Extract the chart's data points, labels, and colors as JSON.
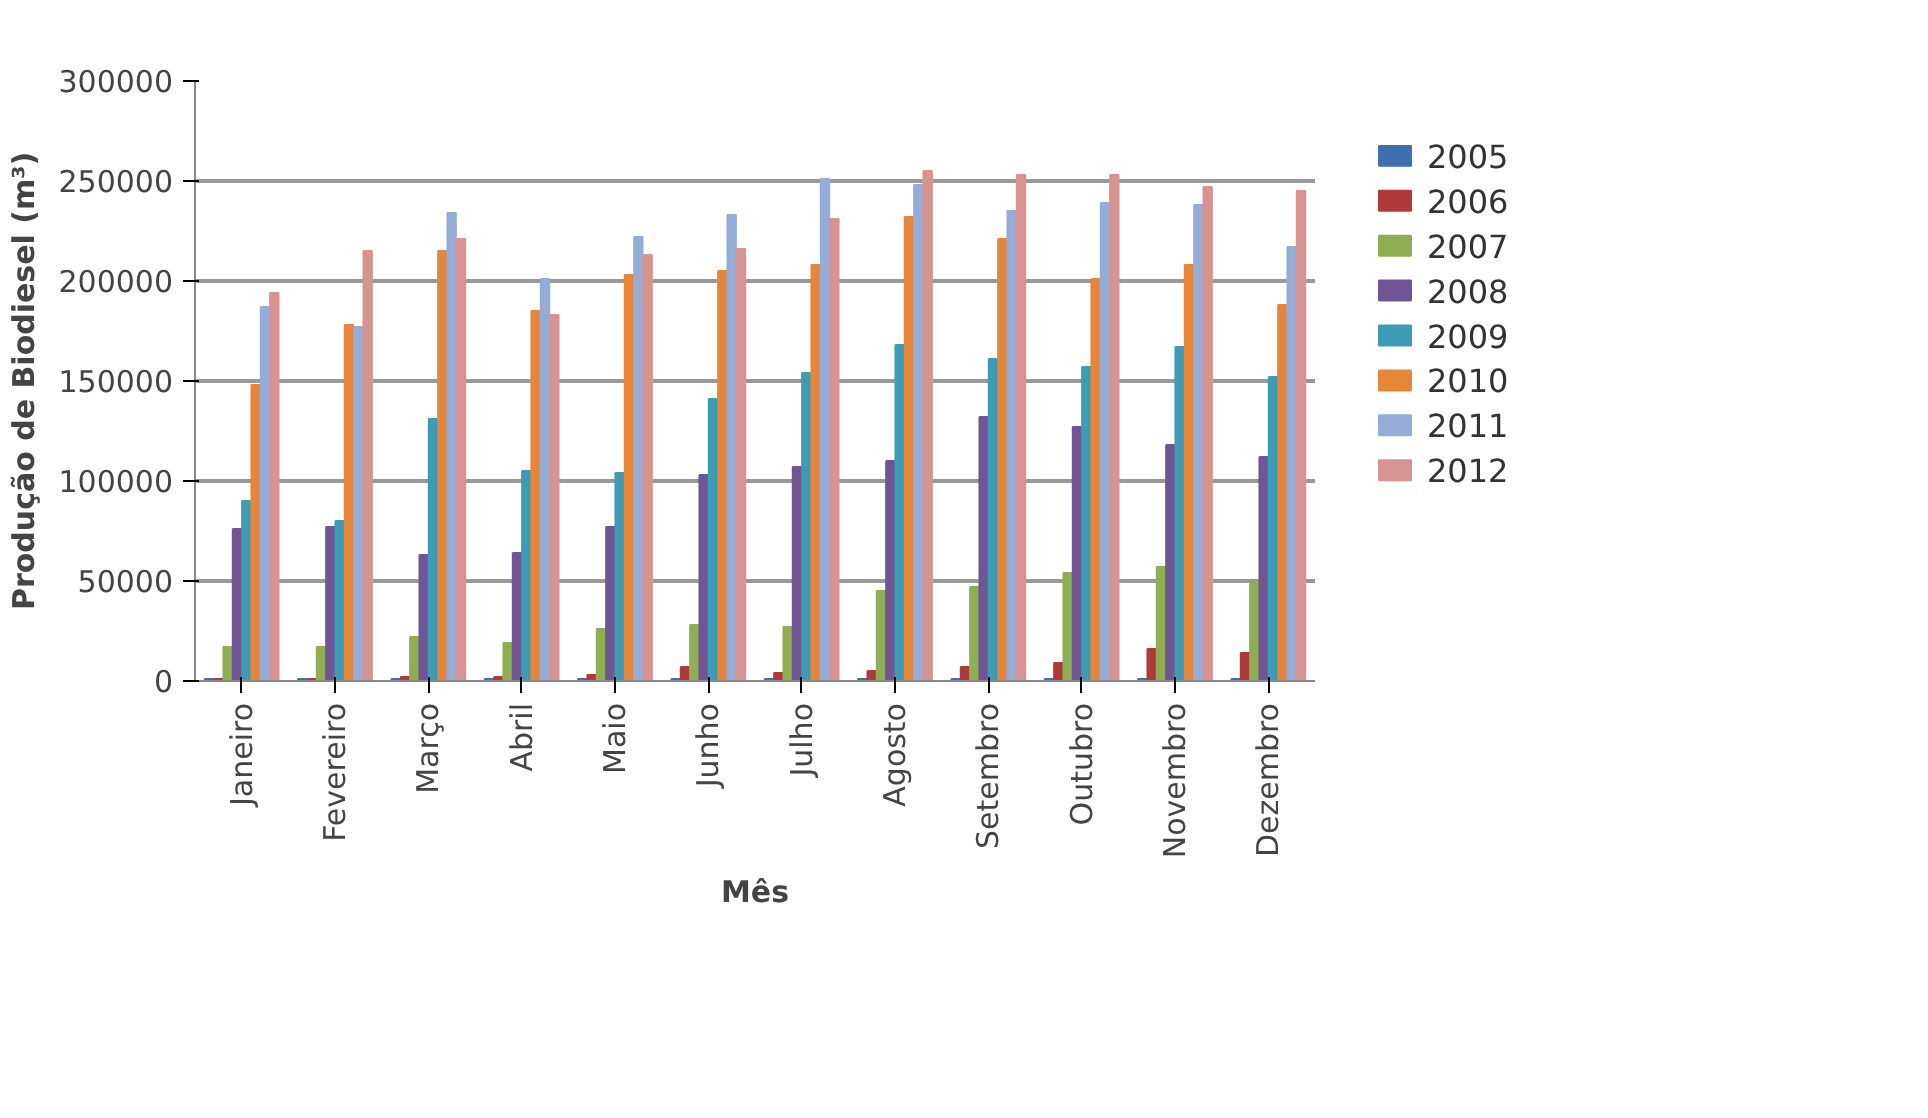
{
  "chart_data": {
    "type": "bar",
    "xlabel": "Mês",
    "ylabel": "Produção de Biodiesel (m³)",
    "categories": [
      "Janeiro",
      "Fevereiro",
      "Março",
      "Abril",
      "Maio",
      "Junho",
      "Julho",
      "Agosto",
      "Setembro",
      "Outubro",
      "Novembro",
      "Dezembro"
    ],
    "ylim": [
      0,
      300000
    ],
    "yticks": [
      0,
      50000,
      100000,
      150000,
      200000,
      250000,
      300000
    ],
    "grid": "y",
    "legend": "right",
    "series": [
      {
        "name": "2005",
        "color": "#3f6fae",
        "values": [
          1000,
          1000,
          1000,
          1000,
          1000,
          1000,
          1000,
          1000,
          1000,
          1000,
          1000,
          1000
        ]
      },
      {
        "name": "2006",
        "color": "#b03a3a",
        "values": [
          1000,
          1000,
          2000,
          2000,
          3000,
          7000,
          4000,
          5000,
          7000,
          9000,
          16000,
          14000
        ]
      },
      {
        "name": "2007",
        "color": "#8fae52",
        "values": [
          17000,
          17000,
          22000,
          19000,
          26000,
          28000,
          27000,
          45000,
          47000,
          54000,
          57000,
          49000
        ]
      },
      {
        "name": "2008",
        "color": "#6f5593",
        "values": [
          76000,
          77000,
          63000,
          64000,
          77000,
          103000,
          107000,
          110000,
          132000,
          127000,
          118000,
          112000
        ]
      },
      {
        "name": "2009",
        "color": "#3d9bb5",
        "values": [
          90000,
          80000,
          131000,
          105000,
          104000,
          141000,
          154000,
          168000,
          161000,
          157000,
          167000,
          152000
        ]
      },
      {
        "name": "2010",
        "color": "#e5863a",
        "values": [
          148000,
          178000,
          215000,
          185000,
          203000,
          205000,
          208000,
          232000,
          221000,
          201000,
          208000,
          188000
        ]
      },
      {
        "name": "2011",
        "color": "#94acd6",
        "values": [
          187000,
          177000,
          234000,
          201000,
          222000,
          233000,
          251000,
          248000,
          235000,
          239000,
          238000,
          217000
        ]
      },
      {
        "name": "2012",
        "color": "#d69391",
        "values": [
          194000,
          215000,
          221000,
          183000,
          213000,
          216000,
          231000,
          255000,
          253000,
          253000,
          247000,
          245000
        ]
      }
    ]
  }
}
